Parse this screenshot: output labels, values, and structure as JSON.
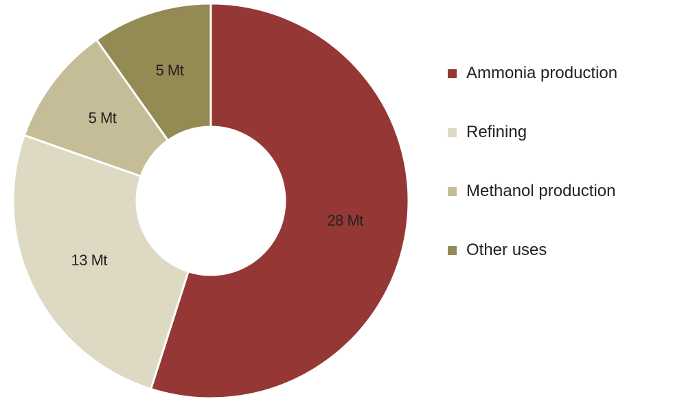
{
  "chart_data": {
    "type": "pie",
    "donut": true,
    "title": "",
    "categories": [
      "Ammonia production",
      "Refining",
      "Methanol production",
      "Other uses"
    ],
    "values": [
      28,
      13,
      5,
      5
    ],
    "unit": "Mt",
    "data_labels": [
      "28 Mt",
      "13 Mt",
      "5 Mt",
      "5 Mt"
    ],
    "colors": [
      "#953735",
      "#ddd9c3",
      "#c4bd97",
      "#948a54"
    ],
    "legend_position": "right"
  }
}
